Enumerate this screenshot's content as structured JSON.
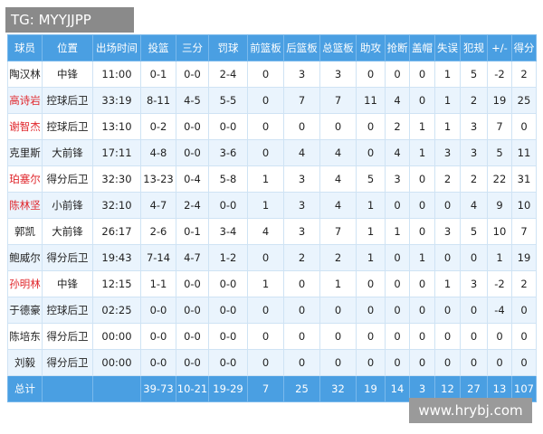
{
  "watermark_top": "TG: MYYJJPP",
  "watermark_bottom": "www.hrybj.com",
  "table": {
    "header": [
      "球员",
      "位置",
      "出场时间",
      "投篮",
      "三分",
      "罚球",
      "前篮板",
      "后篮板",
      "总篮板",
      "助攻",
      "抢断",
      "盖帽",
      "失误",
      "犯规",
      "+/-",
      "得分"
    ],
    "rows": [
      [
        "陶汉林",
        "中锋",
        "11:00",
        "0-1",
        "0-0",
        "2-4",
        "0",
        "3",
        "3",
        "0",
        "0",
        "0",
        "1",
        "5",
        "-2",
        "2"
      ],
      [
        "高诗岩",
        "控球后卫",
        "33:19",
        "8-11",
        "4-5",
        "5-5",
        "0",
        "7",
        "7",
        "11",
        "4",
        "0",
        "1",
        "2",
        "19",
        "25"
      ],
      [
        "谢智杰",
        "控球后卫",
        "13:10",
        "0-2",
        "0-0",
        "0-0",
        "0",
        "0",
        "0",
        "0",
        "2",
        "1",
        "1",
        "3",
        "7",
        "0"
      ],
      [
        "克里斯",
        "大前锋",
        "17:11",
        "4-8",
        "0-0",
        "3-6",
        "0",
        "4",
        "4",
        "0",
        "4",
        "1",
        "3",
        "3",
        "5",
        "11"
      ],
      [
        "珀塞尔",
        "得分后卫",
        "32:30",
        "13-23",
        "0-4",
        "5-8",
        "1",
        "3",
        "4",
        "5",
        "3",
        "0",
        "2",
        "2",
        "22",
        "31"
      ],
      [
        "陈林坚",
        "小前锋",
        "32:10",
        "4-7",
        "2-4",
        "0-0",
        "1",
        "3",
        "4",
        "1",
        "0",
        "0",
        "0",
        "4",
        "9",
        "10"
      ],
      [
        "郭凯",
        "大前锋",
        "26:17",
        "2-6",
        "0-1",
        "3-4",
        "4",
        "3",
        "7",
        "1",
        "1",
        "0",
        "3",
        "5",
        "10",
        "7"
      ],
      [
        "鲍威尔",
        "得分后卫",
        "19:43",
        "7-14",
        "4-7",
        "1-2",
        "0",
        "2",
        "2",
        "1",
        "0",
        "1",
        "0",
        "0",
        "1",
        "19"
      ],
      [
        "孙明林",
        "中锋",
        "12:15",
        "1-1",
        "0-0",
        "0-0",
        "1",
        "0",
        "1",
        "0",
        "0",
        "0",
        "1",
        "3",
        "-2",
        "2"
      ],
      [
        "于德豪",
        "控球后卫",
        "02:25",
        "0-0",
        "0-0",
        "0-0",
        "0",
        "0",
        "0",
        "0",
        "0",
        "0",
        "0",
        "0",
        "-4",
        "0"
      ],
      [
        "陈培东",
        "得分后卫",
        "00:00",
        "0-0",
        "0-0",
        "0-0",
        "0",
        "0",
        "0",
        "0",
        "0",
        "0",
        "0",
        "0",
        "0",
        "0"
      ],
      [
        "刘毅",
        "得分后卫",
        "00:00",
        "0-0",
        "0-0",
        "0-0",
        "0",
        "0",
        "0",
        "0",
        "0",
        "0",
        "0",
        "0",
        "0",
        "0"
      ]
    ],
    "total": [
      "总计",
      "39-73",
      "10-21",
      "19-29",
      "7",
      "25",
      "32",
      "19",
      "14",
      "3",
      "12",
      "27",
      "13",
      "107"
    ]
  }
}
